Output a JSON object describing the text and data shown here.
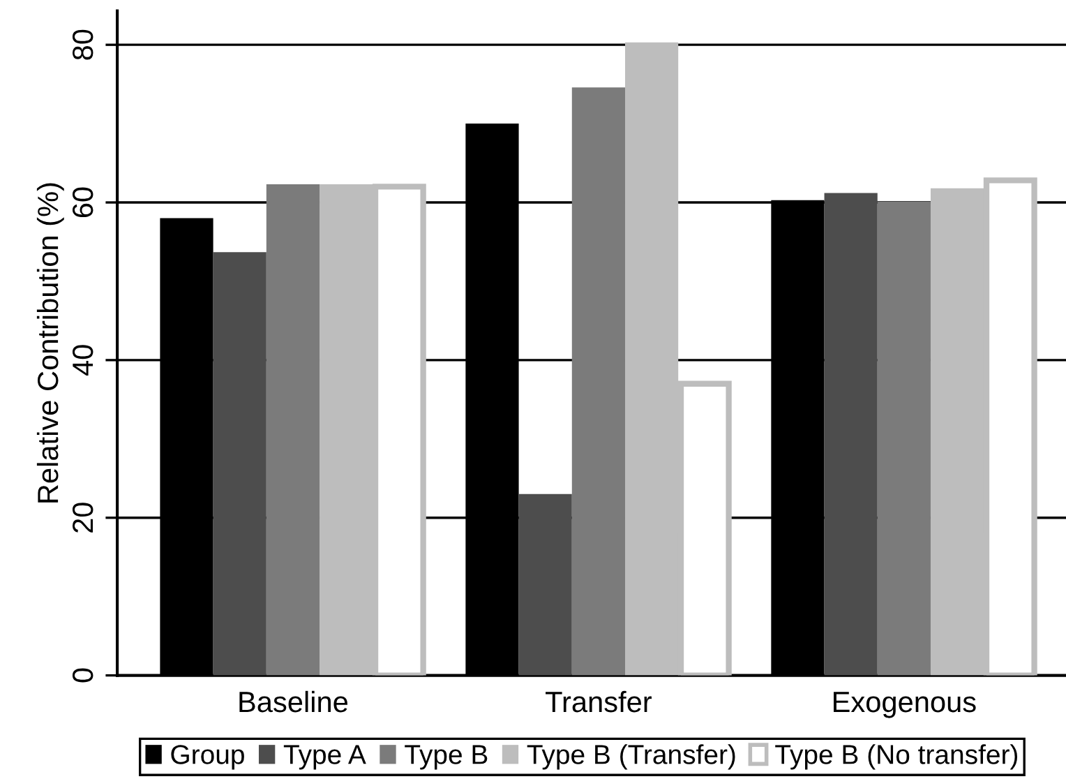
{
  "chart_data": {
    "type": "bar",
    "ylabel": "Relative Contribution (%)",
    "categories": [
      "Baseline",
      "Transfer",
      "Exogenous"
    ],
    "series": [
      {
        "name": "Group",
        "color": "#000000",
        "values": [
          58,
          70,
          60.3
        ]
      },
      {
        "name": "Type A",
        "color": "#4d4d4d",
        "values": [
          53.7,
          23,
          61.2
        ]
      },
      {
        "name": "Type B",
        "color": "#7b7b7b",
        "values": [
          62.3,
          74.6,
          60.1
        ]
      },
      {
        "name": "Type B (Transfer)",
        "color": "#bdbdbd",
        "values": [
          62.3,
          80.3,
          61.8
        ]
      },
      {
        "name": "Type B (No transfer)",
        "color": "#ffffff",
        "values": [
          62,
          37,
          62.8
        ]
      }
    ],
    "ylim": [
      0,
      84.3
    ],
    "yticks": [
      0,
      20,
      40,
      60,
      80
    ],
    "grid": "y",
    "legend": "bottom"
  }
}
